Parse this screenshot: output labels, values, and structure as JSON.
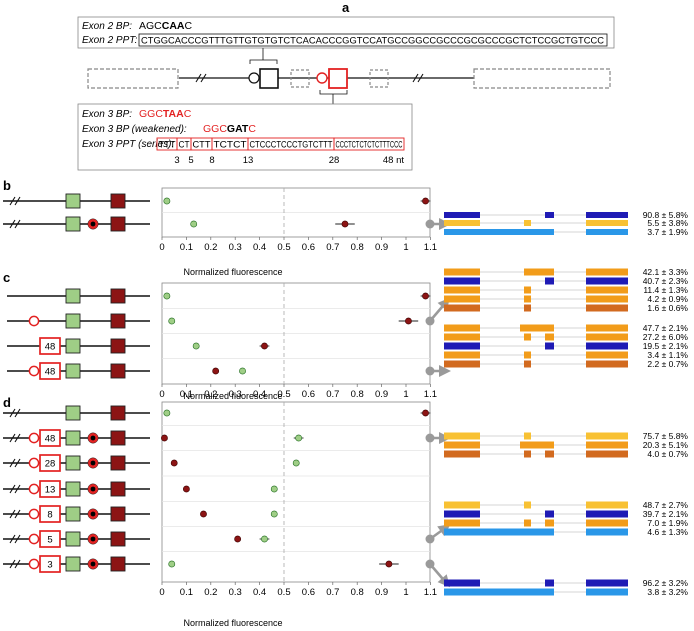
{
  "panels": {
    "a": "a",
    "b": "b",
    "c": "c",
    "d": "d"
  },
  "a": {
    "exon2_bp_label": "Exon 2 BP:",
    "exon2_bp_prefix": "AGC",
    "exon2_bp_bold": "CAA",
    "exon2_bp_suffix": "C",
    "exon2_ppt_label": "Exon 2 PPT:",
    "exon2_ppt_seq": "CTGGCACCCGTTTGTTGTGTGTCTCACACCCGGTCCATGCCGGCCGCCCGCGCCCGCTCTCCGCTGTCCC",
    "exon3_bp_label": "Exon 3 BP:",
    "exon3_bp_prefix": "GGC",
    "exon3_bp_bold": "TAA",
    "exon3_bp_suffix": "C",
    "exon3_bpw_label": "Exon 3 BP (weakened):",
    "exon3_bpw_prefix": "GGC",
    "exon3_bpw_bold": "GAT",
    "exon3_bpw_suffix": "C",
    "exon3_ppt_label": "Exon 3 PPT (series):",
    "ppt_segments": [
      "TTT",
      "CT",
      "CTT",
      "TCTCT",
      "CTCCCTCCCTGTCTTT",
      "CCCTCTCTCTCTTTCCC"
    ],
    "ppt_ticks": [
      "3",
      "5",
      "8",
      "13",
      "28",
      "48 nt"
    ]
  },
  "axis": {
    "ticks": [
      "0",
      "0.1",
      "0.2",
      "0.3",
      "0.4",
      "0.5",
      "0.6",
      "0.7",
      "0.8",
      "0.9",
      "1",
      "1.1"
    ],
    "xlabel": "Normalized fluorescence"
  },
  "constructs": {
    "c_labels": [
      "48",
      "48"
    ],
    "d_labels": [
      "48",
      "28",
      "13",
      "8",
      "5",
      "3"
    ]
  },
  "percentages": {
    "b": [
      "90.8 ± 5.8%",
      "5.5 ± 3.8%",
      "3.7 ± 1.9%"
    ],
    "c1": [
      "42.1 ± 3.3%",
      "40.7 ± 2.3%",
      "11.4 ± 1.3%",
      "4.2 ± 0.9%",
      "1.6 ± 0.6%"
    ],
    "c2": [
      "47.7 ± 2.1%",
      "27.2 ± 6.0%",
      "19.5 ± 2.1%",
      "3.4 ± 1.1%",
      "2.2 ± 0.7%"
    ],
    "d1": [
      "75.7 ± 5.8%",
      "20.3 ± 5.1%",
      "4.0 ± 0.7%"
    ],
    "d2": [
      "48.7 ± 2.7%",
      "39.7 ± 2.1%",
      "7.0 ± 1.9%",
      "4.6 ± 1.3%"
    ],
    "d3": [
      "96.2 ± 3.2%",
      "3.8 ± 3.2%"
    ]
  },
  "colors": {
    "green": "#9fce86",
    "darkred": "#8c1414",
    "red": "#e32222",
    "navy": "#1f1bb5",
    "orange": "#f29c1a",
    "yellow": "#f8c133",
    "brown": "#d26a1f",
    "skyblue": "#2a97e8",
    "gray": "#9a9a9a"
  },
  "chart_data": [
    {
      "type": "scatter",
      "panel": "b",
      "xlabel": "Normalized fluorescence",
      "xlim": [
        0,
        1.1
      ],
      "rows": [
        {
          "green": 0.02,
          "red": 1.08,
          "red_err": 0.02
        },
        {
          "green": 0.13,
          "red": 0.75,
          "red_err": 0.04
        }
      ]
    },
    {
      "type": "scatter",
      "panel": "c",
      "xlabel": "Normalized fluorescence",
      "xlim": [
        0,
        1.1
      ],
      "rows": [
        {
          "green": 0.02,
          "red": 1.08,
          "red_err": 0.02
        },
        {
          "green": 0.04,
          "red": 1.01,
          "red_err": 0.04
        },
        {
          "green": 0.14,
          "red": 0.42,
          "red_err": 0.02
        },
        {
          "green": 0.33,
          "red": 0.22,
          "red_err": 0.01
        }
      ]
    },
    {
      "type": "scatter",
      "panel": "d",
      "xlabel": "Normalized fluorescence",
      "xlim": [
        0,
        1.1
      ],
      "rows": [
        {
          "green": 0.02,
          "red": 1.08,
          "red_err": 0.02
        },
        {
          "green": 0.56,
          "green_err": 0.02,
          "red": 0.01
        },
        {
          "green": 0.55,
          "green_err": 0.01,
          "red": 0.05
        },
        {
          "green": 0.46,
          "green_err": 0.01,
          "red": 0.1
        },
        {
          "green": 0.46,
          "red": 0.17
        },
        {
          "green": 0.42,
          "green_err": 0.02,
          "red": 0.31,
          "red_err": 0.01
        },
        {
          "green": 0.04,
          "red": 0.93,
          "red_err": 0.04
        }
      ]
    }
  ]
}
